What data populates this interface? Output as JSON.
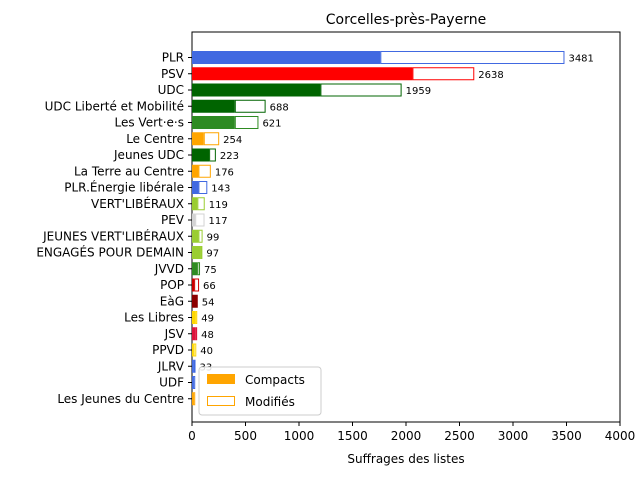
{
  "chart_data": {
    "type": "bar",
    "orientation": "horizontal",
    "title": "Corcelles-près-Payerne",
    "xlabel": "Suffrages des listes",
    "xlim": [
      0,
      4000
    ],
    "xticks": [
      0,
      500,
      1000,
      1500,
      2000,
      2500,
      3000,
      3500,
      4000
    ],
    "categories": [
      "PLR",
      "PSV",
      "UDC",
      "UDC Liberté et Mobilité",
      "Les Vert·e·s",
      "Le Centre",
      "Jeunes UDC",
      "La Terre au Centre",
      "PLR.Énergie libérale",
      "VERT'LIBÉRAUX",
      "PEV",
      "JEUNES VERT'LIBÉRAUX",
      "ENGAGÉS POUR DEMAIN",
      "JVVD",
      "POP",
      "EàG",
      "Les Libres",
      "JSV",
      "PPVD",
      "JLRV",
      "UDF",
      "Les Jeunes du Centre"
    ],
    "colors": [
      "#4169e1",
      "#ff0000",
      "#006400",
      "#006400",
      "#2e8b22",
      "#ffa500",
      "#006400",
      "#ffa500",
      "#4169e1",
      "#9acd32",
      "#d3d3d3",
      "#9acd32",
      "#9acd32",
      "#2e8b22",
      "#cc0000",
      "#8b0000",
      "#ffd700",
      "#dc143c",
      "#ffd700",
      "#4169e1",
      "#4169e1",
      "#ffa500"
    ],
    "series": [
      {
        "name": "Compacts",
        "values": [
          1760,
          2060,
          1200,
          400,
          400,
          110,
          160,
          60,
          60,
          50,
          30,
          60,
          80,
          50,
          20,
          54,
          30,
          30,
          15,
          15,
          10,
          10
        ]
      },
      {
        "name": "Modifiés",
        "values": [
          1721,
          578,
          759,
          288,
          221,
          144,
          63,
          116,
          83,
          69,
          87,
          39,
          17,
          25,
          46,
          0,
          19,
          18,
          25,
          18,
          20,
          20
        ]
      }
    ],
    "totals": [
      3481,
      2638,
      1959,
      688,
      621,
      254,
      223,
      176,
      143,
      119,
      117,
      99,
      97,
      75,
      66,
      54,
      49,
      48,
      40,
      33,
      30,
      30
    ],
    "total_labels": [
      "3481",
      "2638",
      "1959",
      "688",
      "621",
      "254",
      "223",
      "176",
      "143",
      "119",
      "117",
      "99",
      "97",
      "75",
      "66",
      "54",
      "49",
      "48",
      "40",
      "33",
      "",
      ""
    ],
    "legend": {
      "placement": "lower-left",
      "entries": [
        "Compacts",
        "Modifiés"
      ],
      "color": "#ffa500"
    }
  }
}
